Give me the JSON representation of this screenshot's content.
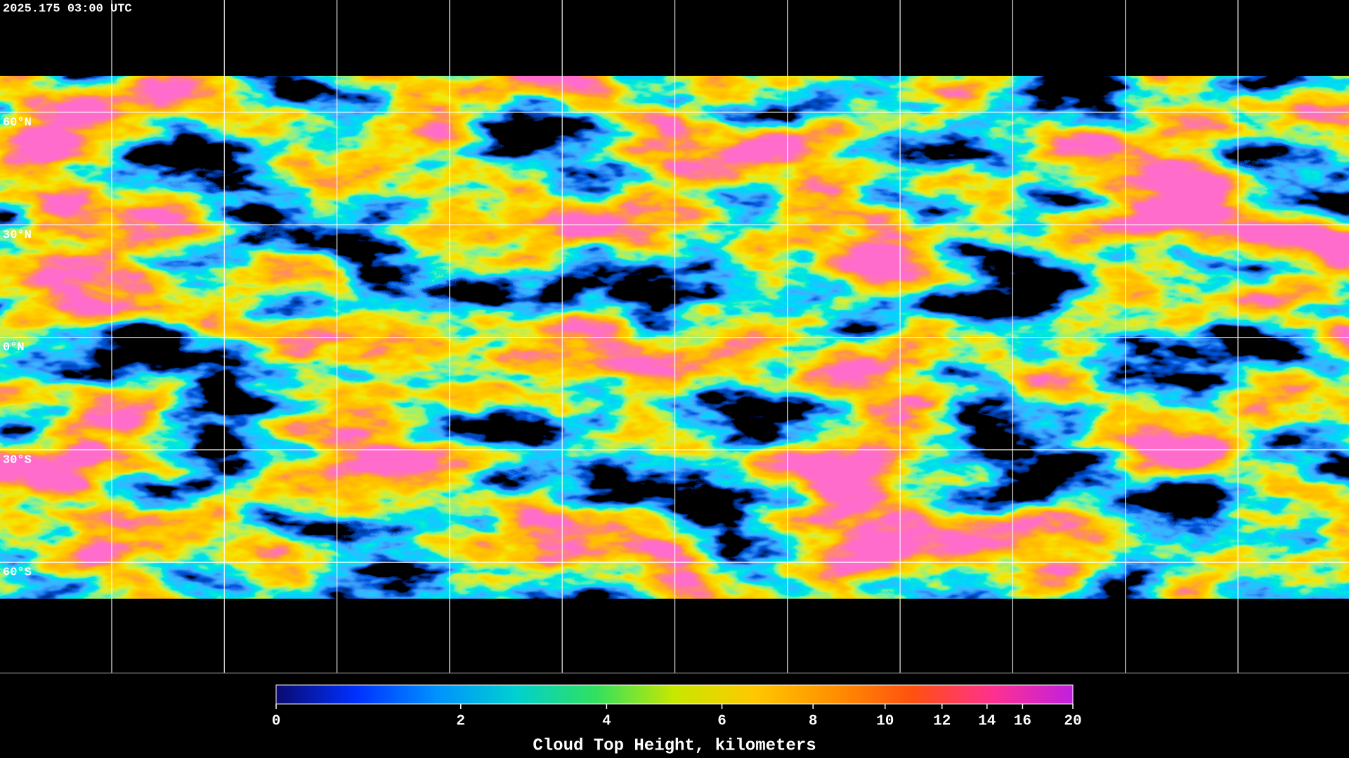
{
  "timestamp": "2025.175 03:00 UTC",
  "map": {
    "lat_labels": [
      "60°N",
      "30°N",
      "0°N",
      "30°S",
      "60°S"
    ]
  },
  "colorbar": {
    "label": "Cloud Top Height, kilometers",
    "range": [
      0,
      20
    ],
    "ticks": [
      0,
      2,
      4,
      6,
      8,
      10,
      12,
      14,
      16,
      20
    ],
    "colors": [
      "#0a0a70",
      "#0030ff",
      "#0090ff",
      "#00d0d0",
      "#30e060",
      "#c8e800",
      "#ffc800",
      "#ff9000",
      "#ff5010",
      "#ff3090",
      "#c020e0"
    ]
  }
}
